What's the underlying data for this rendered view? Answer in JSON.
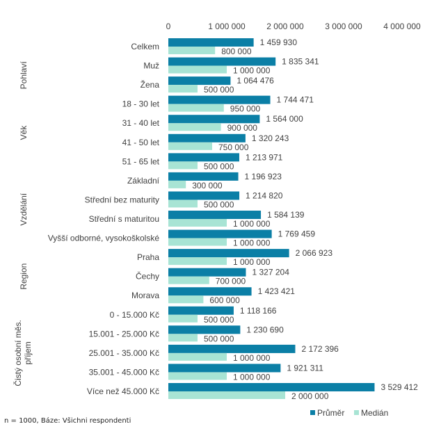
{
  "chart_data": {
    "type": "bar",
    "orientation": "horizontal",
    "xlim": [
      0,
      4000000
    ],
    "x_ticks": [
      "0",
      "1 000 000",
      "2 000 000",
      "3 000 000",
      "4 000 000"
    ],
    "x_tick_values": [
      0,
      1000000,
      2000000,
      3000000,
      4000000
    ],
    "axis_position": "top",
    "grid": false,
    "legend_placement": "bottom-right",
    "categories": [
      "Celkem",
      "Muž",
      "Žena",
      "18 - 30 let",
      "31 - 40 let",
      "41 - 50 let",
      "51 - 65 let",
      "Základní",
      "Střední bez maturity",
      "Střední s maturitou",
      "Vyšší odborné, vysokoškolské",
      "Praha",
      "Čechy",
      "Morava",
      "0 - 15.000 Kč",
      "15.001 - 25.000 Kč",
      "25.001 - 35.000 Kč",
      "35.001 - 45.000 Kč",
      "Více než 45.000 Kč"
    ],
    "groups": [
      {
        "label": "Pohlaví",
        "lines": [
          "Pohlaví"
        ],
        "from": 1,
        "to": 2
      },
      {
        "label": "Věk",
        "lines": [
          "Věk"
        ],
        "from": 3,
        "to": 6
      },
      {
        "label": "Vzdělání",
        "lines": [
          "Vzdělání"
        ],
        "from": 7,
        "to": 10
      },
      {
        "label": "Region",
        "lines": [
          "Region"
        ],
        "from": 11,
        "to": 13
      },
      {
        "label": "Čistý osobní měs. příjem",
        "lines": [
          "Čistý osobní měs.",
          "příjem"
        ],
        "from": 14,
        "to": 18
      }
    ],
    "series": [
      {
        "name": "Průměr",
        "color": "#0B7FA6",
        "values": [
          1459930,
          1835341,
          1064476,
          1744471,
          1564000,
          1320243,
          1213971,
          1196923,
          1214820,
          1584139,
          1769459,
          2066923,
          1327204,
          1423421,
          1118166,
          1230690,
          2172396,
          1921311,
          3529412
        ],
        "labels": [
          "1 459 930",
          "1 835 341",
          "1 064 476",
          "1 744 471",
          "1 564 000",
          "1 320 243",
          "1 213 971",
          "1 196 923",
          "1 214 820",
          "1 584 139",
          "1 769 459",
          "2 066 923",
          "1 327 204",
          "1 423 421",
          "1 118 166",
          "1 230 690",
          "2 172 396",
          "1 921 311",
          "3 529 412"
        ]
      },
      {
        "name": "Medián",
        "color": "#A8E4D4",
        "values": [
          800000,
          1000000,
          500000,
          950000,
          900000,
          750000,
          500000,
          300000,
          500000,
          1000000,
          1000000,
          1000000,
          700000,
          600000,
          500000,
          500000,
          1000000,
          1000000,
          2000000
        ],
        "labels": [
          "800 000",
          "1 000 000",
          "500 000",
          "950 000",
          "900 000",
          "750 000",
          "500 000",
          "300 000",
          "500 000",
          "1 000 000",
          "1 000 000",
          "1 000 000",
          "700 000",
          "600 000",
          "500 000",
          "500 000",
          "1 000 000",
          "1 000 000",
          "2 000 000"
        ]
      }
    ]
  },
  "footnote": "n = 1000, Báze: Všichni respondenti"
}
